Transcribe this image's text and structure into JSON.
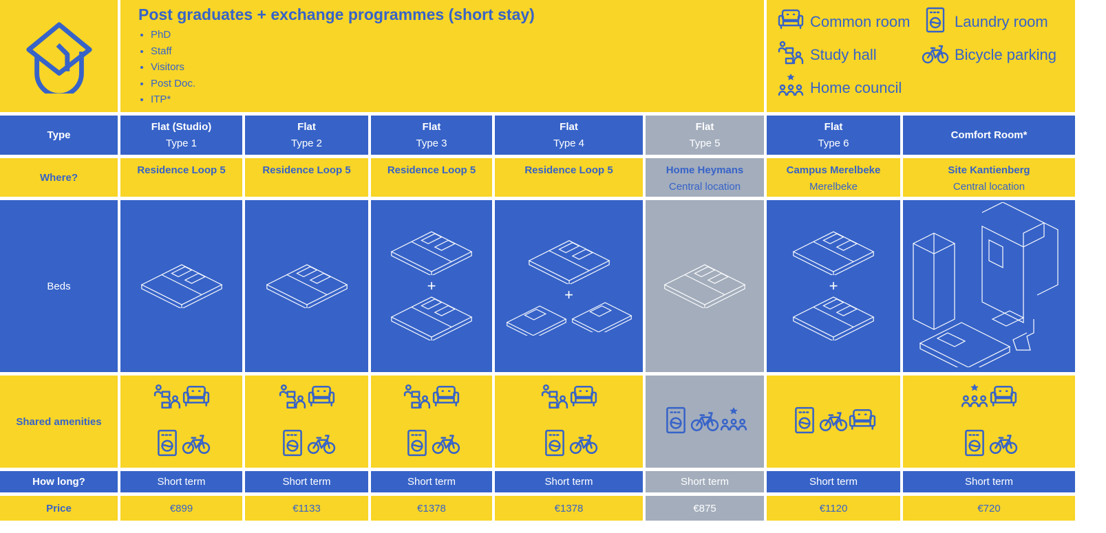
{
  "header": {
    "title": "Post graduates + exchange programmes (short stay)",
    "audiences": [
      "PhD",
      "Staff",
      "Visitors",
      "Post Doc.",
      "ITP*"
    ]
  },
  "legend": [
    {
      "icon": "sofa-icon",
      "label": "Common room"
    },
    {
      "icon": "washing-machine-icon",
      "label": "Laundry room"
    },
    {
      "icon": "study-hall-icon",
      "label": "Study hall"
    },
    {
      "icon": "bicycle-icon",
      "label": "Bicycle parking"
    },
    {
      "icon": "home-council-icon",
      "label": "Home council"
    }
  ],
  "row_labels": {
    "type": "Type",
    "where": "Where?",
    "beds": "Beds",
    "amenities": "Shared amenities",
    "how_long": "How long?",
    "price": "Price"
  },
  "colors": {
    "yellow": "#F8D526",
    "blue": "#3763C8",
    "grey": "#A3ADBC"
  },
  "columns": [
    {
      "type": "Flat (Studio)",
      "subtype": "Type 1",
      "where": "Residence Loop 5",
      "where_sub": "",
      "beds": [
        "double"
      ],
      "amenities": [
        "study",
        "common",
        "laundry",
        "bicycle"
      ],
      "how_long": "Short term",
      "price": "€899",
      "greyed": false
    },
    {
      "type": "Flat",
      "subtype": "Type 2",
      "where": "Residence Loop 5",
      "where_sub": "",
      "beds": [
        "double"
      ],
      "amenities": [
        "study",
        "common",
        "laundry",
        "bicycle"
      ],
      "how_long": "Short term",
      "price": "€1133",
      "greyed": false
    },
    {
      "type": "Flat",
      "subtype": "Type 3",
      "where": "Residence Loop 5",
      "where_sub": "",
      "beds": [
        "double",
        "+",
        "double"
      ],
      "amenities": [
        "study",
        "common",
        "laundry",
        "bicycle"
      ],
      "how_long": "Short term",
      "price": "€1378",
      "greyed": false
    },
    {
      "type": "Flat",
      "subtype": "Type 4",
      "where": "Residence Loop 5",
      "where_sub": "",
      "beds": [
        "double",
        "+",
        "singles"
      ],
      "amenities": [
        "study",
        "common",
        "laundry",
        "bicycle"
      ],
      "how_long": "Short term",
      "price": "€1378",
      "greyed": false
    },
    {
      "type": "Flat",
      "subtype": "Type 5",
      "where": "Home Heymans",
      "where_sub": "Central location",
      "beds": [
        "double"
      ],
      "amenities": [
        "laundry",
        "bicycle",
        "council"
      ],
      "how_long": "Short term",
      "price": "€875",
      "greyed": true
    },
    {
      "type": "Flat",
      "subtype": "Type 6",
      "where": "Campus Merelbeke",
      "where_sub": "Merelbeke",
      "beds": [
        "double",
        "+",
        "double"
      ],
      "amenities": [
        "laundry",
        "bicycle",
        "common"
      ],
      "how_long": "Short term",
      "price": "€1120",
      "greyed": false
    },
    {
      "type": "Comfort Room*",
      "subtype": "",
      "where": "Site Kantienberg",
      "where_sub": "Central location",
      "beds": [
        "comfort"
      ],
      "amenities": [
        "council",
        "common",
        "laundry",
        "bicycle"
      ],
      "how_long": "Short term",
      "price": "€720",
      "greyed": false
    }
  ]
}
